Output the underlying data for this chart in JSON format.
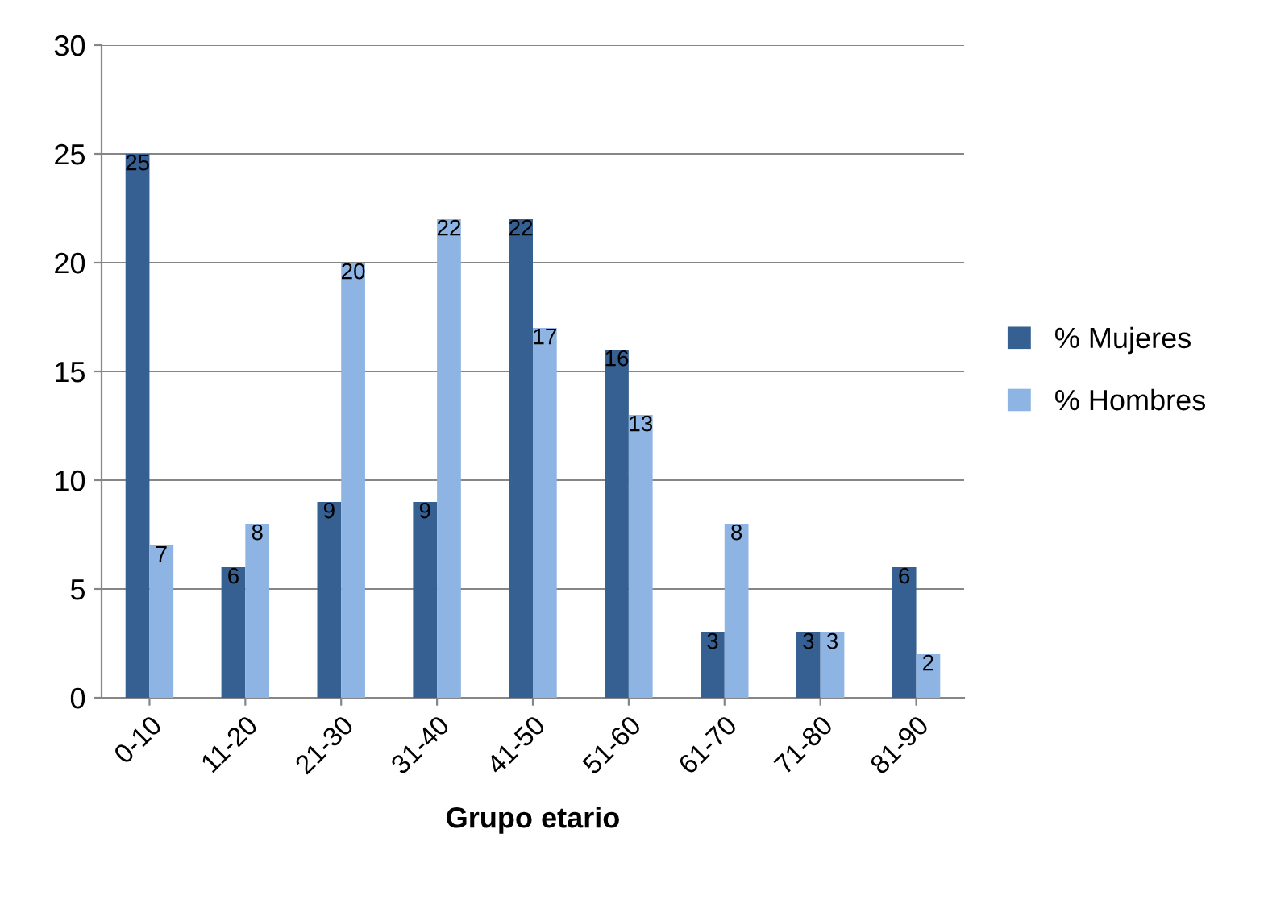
{
  "chart_data": {
    "type": "bar",
    "xlabel": "Grupo etario",
    "categories": [
      "0-10",
      "11-20",
      "21-30",
      "31-40",
      "41-50",
      "51-60",
      "61-70",
      "71-80",
      "81-90"
    ],
    "series": [
      {
        "name": "% Mujeres",
        "color": "#376092",
        "values": [
          25,
          6,
          9,
          9,
          22,
          16,
          3,
          3,
          6
        ]
      },
      {
        "name": "% Hombres",
        "color": "#8eb4e3",
        "values": [
          7,
          8,
          20,
          22,
          17,
          13,
          8,
          3,
          2
        ]
      }
    ],
    "ylim": [
      0,
      30
    ],
    "yticks": [
      0,
      5,
      10,
      15,
      20,
      25,
      30
    ],
    "grid": "y",
    "legend": "right",
    "data_labels": true
  }
}
